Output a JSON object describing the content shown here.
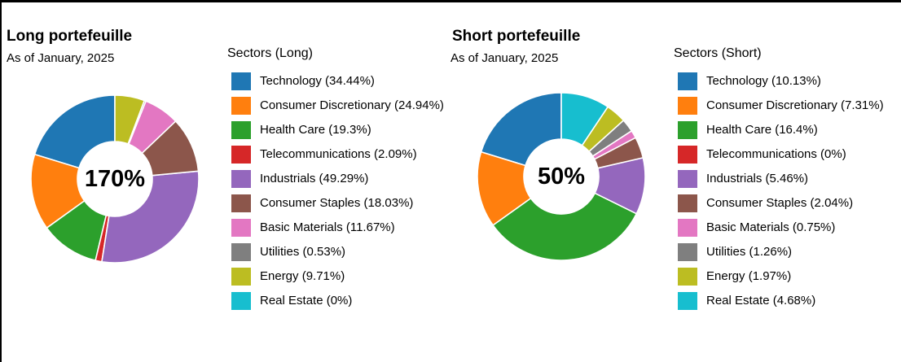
{
  "page": {
    "background": "#ffffff",
    "border_color": "#000000",
    "text_color": "#000000"
  },
  "chart_data": [
    {
      "type": "donut",
      "title": "Long portefeuille",
      "subtitle": "As of January, 2025",
      "center_label": "170%",
      "total_pct": 170,
      "legend_title": "Sectors (Long)",
      "legend_position": "right",
      "start_angle_deg": 90,
      "direction": "counterclockwise",
      "categories": [
        "Technology",
        "Consumer Discretionary",
        "Health Care",
        "Telecommunications",
        "Industrials",
        "Consumer Staples",
        "Basic Materials",
        "Utilities",
        "Energy",
        "Real Estate"
      ],
      "values": [
        34.44,
        24.94,
        19.3,
        2.09,
        49.29,
        18.03,
        11.67,
        0.53,
        9.71,
        0
      ],
      "labels": [
        "Technology (34.44%)",
        "Consumer Discretionary (24.94%)",
        "Health Care (19.3%)",
        "Telecommunications (2.09%)",
        "Industrials (49.29%)",
        "Consumer Staples (18.03%)",
        "Basic Materials (11.67%)",
        "Utilities (0.53%)",
        "Energy (9.71%)",
        "Real Estate (0%)"
      ],
      "colors": [
        "#1f77b4",
        "#ff7f0e",
        "#2ca02c",
        "#d62728",
        "#9467bd",
        "#8c564b",
        "#e377c2",
        "#7f7f7f",
        "#bcbd22",
        "#17becf"
      ]
    },
    {
      "type": "donut",
      "title": "Short portefeuille",
      "subtitle": "As of January, 2025",
      "center_label": "50%",
      "total_pct": 50,
      "legend_title": "Sectors (Short)",
      "legend_position": "right",
      "start_angle_deg": 90,
      "direction": "counterclockwise",
      "categories": [
        "Technology",
        "Consumer Discretionary",
        "Health Care",
        "Telecommunications",
        "Industrials",
        "Consumer Staples",
        "Basic Materials",
        "Utilities",
        "Energy",
        "Real Estate"
      ],
      "values": [
        10.13,
        7.31,
        16.4,
        0,
        5.46,
        2.04,
        0.75,
        1.26,
        1.97,
        4.68
      ],
      "labels": [
        "Technology (10.13%)",
        "Consumer Discretionary (7.31%)",
        "Health Care (16.4%)",
        "Telecommunications (0%)",
        "Industrials (5.46%)",
        "Consumer Staples (2.04%)",
        "Basic Materials (0.75%)",
        "Utilities (1.26%)",
        "Energy (1.97%)",
        "Real Estate (4.68%)"
      ],
      "colors": [
        "#1f77b4",
        "#ff7f0e",
        "#2ca02c",
        "#d62728",
        "#9467bd",
        "#8c564b",
        "#e377c2",
        "#7f7f7f",
        "#bcbd22",
        "#17becf"
      ]
    }
  ]
}
